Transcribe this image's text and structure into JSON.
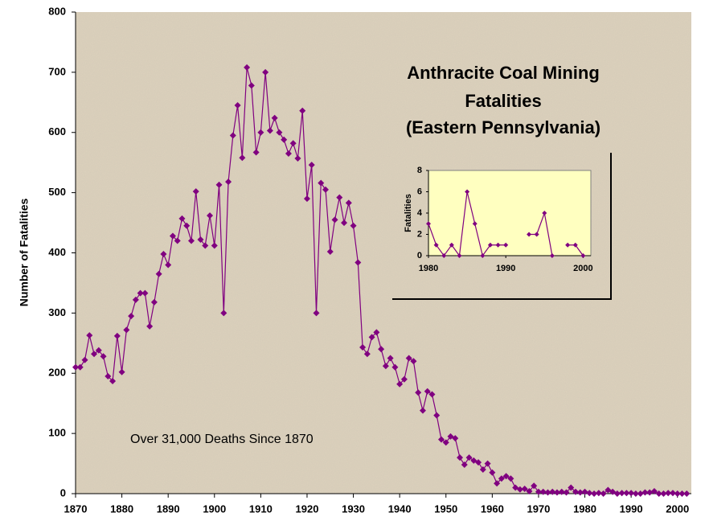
{
  "chart_data": [
    {
      "type": "line",
      "title": [
        "Anthracite Coal Mining",
        "Fatalities",
        "(Eastern Pennsylvania)"
      ],
      "y_label": "Number of Fatalities",
      "annotation": "Over 31,000 Deaths Since 1870",
      "color": "#800080",
      "x": [
        1870,
        1871,
        1872,
        1873,
        1874,
        1875,
        1876,
        1877,
        1878,
        1879,
        1880,
        1881,
        1882,
        1883,
        1884,
        1885,
        1886,
        1887,
        1888,
        1889,
        1890,
        1891,
        1892,
        1893,
        1894,
        1895,
        1896,
        1897,
        1898,
        1899,
        1900,
        1901,
        1902,
        1903,
        1904,
        1905,
        1906,
        1907,
        1908,
        1909,
        1910,
        1911,
        1912,
        1913,
        1914,
        1915,
        1916,
        1917,
        1918,
        1919,
        1920,
        1921,
        1922,
        1923,
        1924,
        1925,
        1926,
        1927,
        1928,
        1929,
        1930,
        1931,
        1932,
        1933,
        1934,
        1935,
        1936,
        1937,
        1938,
        1939,
        1940,
        1941,
        1942,
        1943,
        1944,
        1945,
        1946,
        1947,
        1948,
        1949,
        1950,
        1951,
        1952,
        1953,
        1954,
        1955,
        1956,
        1957,
        1958,
        1959,
        1960,
        1961,
        1962,
        1963,
        1964,
        1965,
        1966,
        1967,
        1968,
        1969,
        1970,
        1971,
        1972,
        1973,
        1974,
        1975,
        1976,
        1977,
        1978,
        1979,
        1980,
        1981,
        1982,
        1983,
        1984,
        1985,
        1986,
        1987,
        1988,
        1989,
        1990,
        1991,
        1992,
        1993,
        1994,
        1995,
        1996,
        1997,
        1998,
        1999,
        2000,
        2001,
        2002
      ],
      "values": [
        210,
        210,
        222,
        263,
        232,
        238,
        228,
        195,
        187,
        262,
        202,
        272,
        295,
        322,
        333,
        333,
        278,
        318,
        365,
        398,
        380,
        428,
        420,
        457,
        445,
        420,
        502,
        422,
        412,
        462,
        412,
        513,
        300,
        518,
        595,
        645,
        558,
        708,
        678,
        567,
        600,
        700,
        603,
        624,
        600,
        588,
        565,
        582,
        557,
        636,
        490,
        546,
        300,
        516,
        505,
        402,
        455,
        492,
        450,
        483,
        445,
        384,
        243,
        232,
        260,
        268,
        240,
        212,
        225,
        210,
        182,
        190,
        225,
        220,
        168,
        138,
        170,
        165,
        130,
        90,
        85,
        95,
        92,
        60,
        48,
        60,
        55,
        52,
        40,
        50,
        35,
        17,
        25,
        29,
        25,
        10,
        7,
        8,
        4,
        13,
        3,
        3,
        2,
        3,
        2,
        3,
        2,
        10,
        3,
        2,
        3,
        1,
        0,
        1,
        0,
        6,
        3,
        0,
        1,
        1,
        1,
        0,
        0,
        2,
        2,
        4,
        0,
        0,
        1,
        1,
        0,
        0,
        0
      ],
      "xlim": [
        1870,
        2003
      ],
      "xticks": [
        1870,
        1880,
        1890,
        1900,
        1910,
        1920,
        1930,
        1940,
        1950,
        1960,
        1970,
        1980,
        1990,
        2000
      ],
      "ylim": [
        0,
        800
      ],
      "yticks": [
        0,
        100,
        200,
        300,
        400,
        500,
        600,
        700,
        800
      ]
    },
    {
      "type": "line",
      "y_label": "Fatalities",
      "color": "#800080",
      "x": [
        1980,
        1981,
        1982,
        1983,
        1984,
        1985,
        1986,
        1987,
        1988,
        1989,
        1990,
        1991,
        1992,
        1993,
        1994,
        1995,
        1996,
        1997,
        1998,
        1999,
        2000
      ],
      "values": [
        3,
        1,
        0,
        1,
        0,
        6,
        3,
        0,
        1,
        1,
        1,
        null,
        null,
        2,
        2,
        4,
        0,
        null,
        1,
        1,
        0
      ],
      "xlim": [
        1980,
        2001
      ],
      "xticks": [
        1980,
        1990,
        2000
      ],
      "ylim": [
        0,
        8
      ],
      "yticks": [
        0,
        2,
        4,
        6,
        8
      ]
    }
  ]
}
